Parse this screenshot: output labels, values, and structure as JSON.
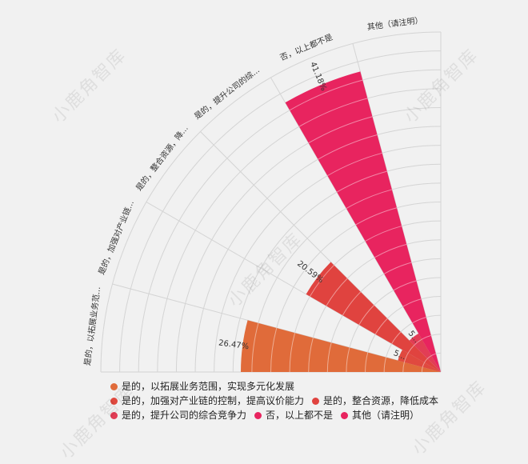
{
  "watermark": "小鹿角智库",
  "chart_data": {
    "type": "polar-bar",
    "categories": [
      "是的，以拓展业务范围，实现多元化发展",
      "是的，加强对产业链的控制，提高议价能力",
      "是的，整合资源，降低成本",
      "是的，提升公司的综合竞争力",
      "否，以上都不是",
      "其他（请注明）"
    ],
    "axis_labels": [
      "是的，以拓展业务范...",
      "是的，加强对产业链...",
      "是的，整合资源，降...",
      "是的，提升公司的综...",
      "否，以上都不是",
      "其他（请注明）"
    ],
    "values": [
      26.47,
      5.88,
      20.59,
      5.88,
      41.18,
      0
    ],
    "data_labels": [
      "26.47%",
      "5...",
      "20.59%",
      "5...",
      "41.18%",
      ""
    ],
    "colors": [
      "#e06b3a",
      "#e0493f",
      "#e0433f",
      "#e23d55",
      "#e8245f",
      "#e8245f"
    ],
    "rmax": 45,
    "angular_range_deg": [
      180,
      270
    ],
    "grid": true,
    "legend_position": "bottom"
  },
  "legend": {
    "rows": [
      [
        {
          "label": "是的，以拓展业务范围，实现多元化发展",
          "color": "#e06b3a"
        }
      ],
      [
        {
          "label": "是的，加强对产业链的控制，提高议价能力",
          "color": "#e0493f"
        },
        {
          "label": "是的，整合资源，降低成本",
          "color": "#e0433f"
        }
      ],
      [
        {
          "label": "是的，提升公司的综合竞争力",
          "color": "#e23d55"
        },
        {
          "label": "否，以上都不是",
          "color": "#e8245f"
        },
        {
          "label": "其他（请注明）",
          "color": "#e8245f"
        }
      ]
    ]
  }
}
